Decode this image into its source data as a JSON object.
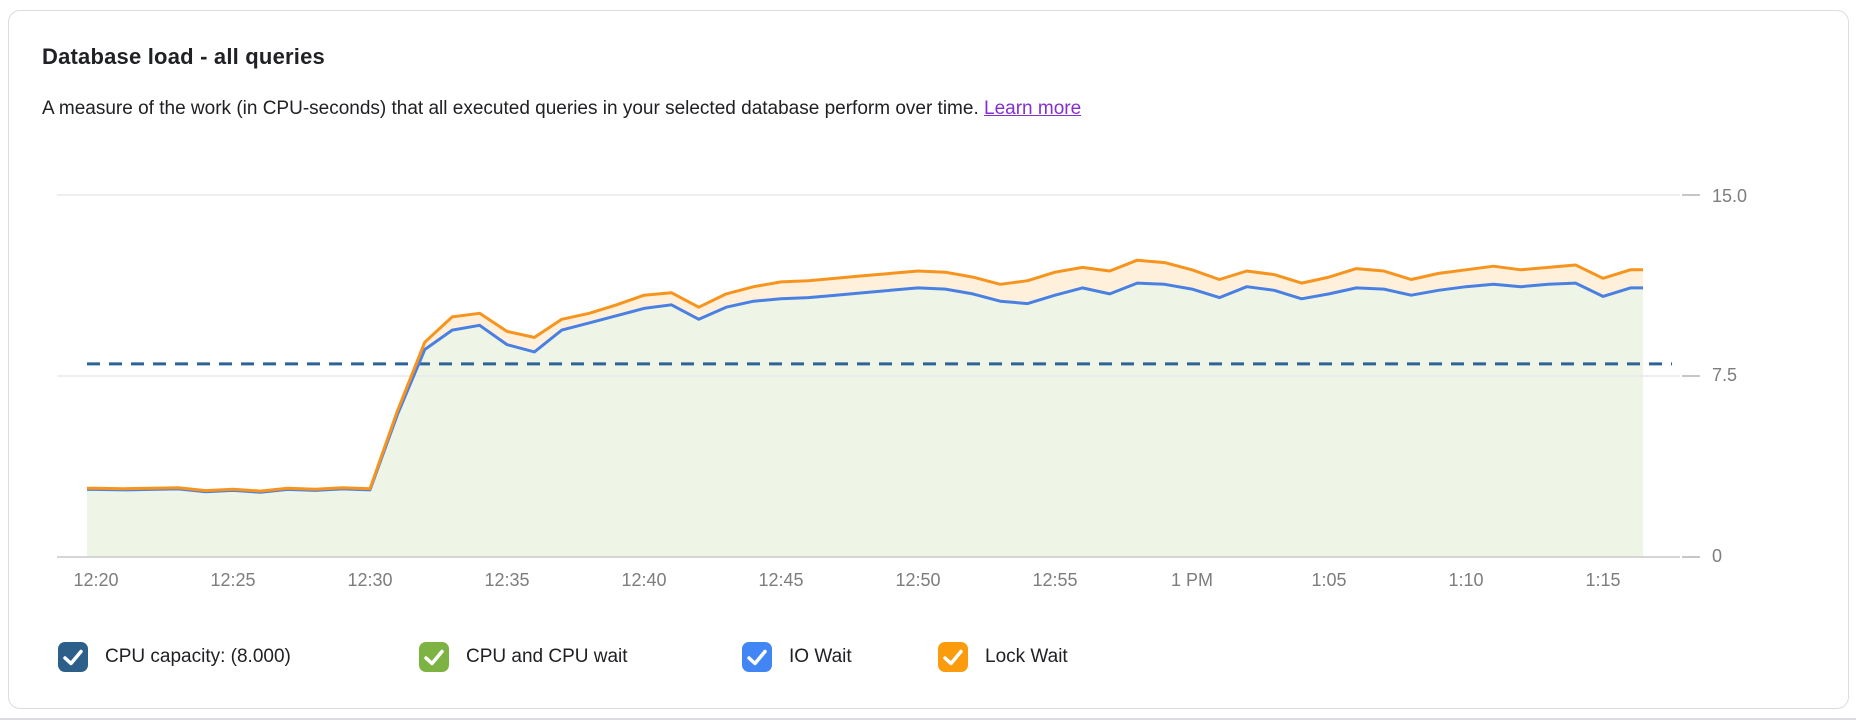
{
  "card": {
    "title": "Database load - all queries",
    "description": "A measure of the work (in CPU-seconds) that all executed queries in your selected database perform over time.",
    "learn_more": "Learn more"
  },
  "colors": {
    "link": "#8430ce",
    "card_border": "#dadce0",
    "grid_line": "#e9e9e9",
    "axis_line": "#c9c9c9",
    "tick_mark": "#c6c6c6",
    "axis_label": "#7d7d7d",
    "capacity_line": "#2e6396",
    "io_wait_line": "#4a80e2",
    "lock_wait_line": "#f7941e",
    "cpu_area_fill_base": "#7cb342",
    "lock_area_fill_base": "#fb9b0e",
    "legend_text": "#202124"
  },
  "chart_data": {
    "type": "area",
    "title": "Database load - all queries",
    "x": {
      "tick_labels": [
        "12:20",
        "12:25",
        "12:30",
        "12:35",
        "12:40",
        "12:45",
        "12:50",
        "12:55",
        "1 PM",
        "1:05",
        "1:10",
        "1:15"
      ],
      "start": "12:20",
      "end": "1:16 PM",
      "step_minutes": 1,
      "points": 57
    },
    "y": {
      "ticks": [
        "15.0",
        "7.5",
        "0"
      ],
      "tick_values": [
        15.0,
        7.5,
        0
      ],
      "range": [
        0,
        15
      ],
      "unit": "CPU-seconds per second"
    },
    "capacity": {
      "name": "CPU capacity",
      "value": 8.0,
      "formatted": "(8.000)",
      "style": "dashed"
    },
    "legend_position": "bottom",
    "series": [
      {
        "name": "CPU and CPU wait",
        "color": "#7cb342",
        "render": "area-to-zero",
        "note": "stacked top edge visually coincides with IO Wait line (IO wait ~0)",
        "values": [
          2.8,
          2.78,
          2.8,
          2.82,
          2.7,
          2.76,
          2.68,
          2.8,
          2.76,
          2.82,
          2.78,
          5.9,
          8.6,
          9.4,
          9.6,
          8.8,
          8.5,
          9.4,
          9.7,
          10.0,
          10.3,
          10.45,
          9.85,
          10.35,
          10.6,
          10.7,
          10.75,
          10.85,
          10.95,
          11.05,
          11.15,
          11.1,
          10.9,
          10.6,
          10.5,
          10.85,
          11.15,
          10.9,
          11.35,
          11.3,
          11.1,
          10.75,
          11.2,
          11.05,
          10.7,
          10.9,
          11.15,
          11.1,
          10.85,
          11.05,
          11.2,
          11.3,
          11.2,
          11.3,
          11.35,
          10.8,
          11.15
        ]
      },
      {
        "name": "IO Wait",
        "color": "#4a80e2",
        "render": "line",
        "values": [
          2.8,
          2.78,
          2.8,
          2.82,
          2.7,
          2.76,
          2.68,
          2.8,
          2.76,
          2.82,
          2.78,
          5.9,
          8.6,
          9.4,
          9.6,
          8.8,
          8.5,
          9.4,
          9.7,
          10.0,
          10.3,
          10.45,
          9.85,
          10.35,
          10.6,
          10.7,
          10.75,
          10.85,
          10.95,
          11.05,
          11.15,
          11.1,
          10.9,
          10.6,
          10.5,
          10.85,
          11.15,
          10.9,
          11.35,
          11.3,
          11.1,
          10.75,
          11.2,
          11.05,
          10.7,
          10.9,
          11.15,
          11.1,
          10.85,
          11.05,
          11.2,
          11.3,
          11.2,
          11.3,
          11.35,
          10.8,
          11.15
        ]
      },
      {
        "name": "Lock Wait",
        "color": "#f7941e",
        "render": "line-with-band-to-previous",
        "values": [
          2.85,
          2.83,
          2.85,
          2.87,
          2.75,
          2.81,
          2.73,
          2.85,
          2.81,
          2.87,
          2.83,
          6.05,
          8.9,
          9.95,
          10.1,
          9.35,
          9.1,
          9.85,
          10.1,
          10.45,
          10.85,
          10.95,
          10.35,
          10.9,
          11.2,
          11.4,
          11.45,
          11.55,
          11.65,
          11.75,
          11.85,
          11.8,
          11.6,
          11.3,
          11.45,
          11.8,
          12.0,
          11.85,
          12.3,
          12.2,
          11.9,
          11.5,
          11.85,
          11.7,
          11.35,
          11.6,
          11.95,
          11.85,
          11.5,
          11.75,
          11.9,
          12.05,
          11.9,
          12.0,
          12.1,
          11.55,
          11.9
        ]
      }
    ]
  },
  "legend": {
    "items": [
      {
        "label": "CPU capacity: (8.000)",
        "color": "#2d5f8b",
        "checked": true
      },
      {
        "label": "CPU and CPU wait",
        "color": "#7cb342",
        "checked": true
      },
      {
        "label": "IO Wait",
        "color": "#4285f4",
        "checked": true
      },
      {
        "label": "Lock Wait",
        "color": "#fb9b0e",
        "checked": true
      }
    ]
  }
}
